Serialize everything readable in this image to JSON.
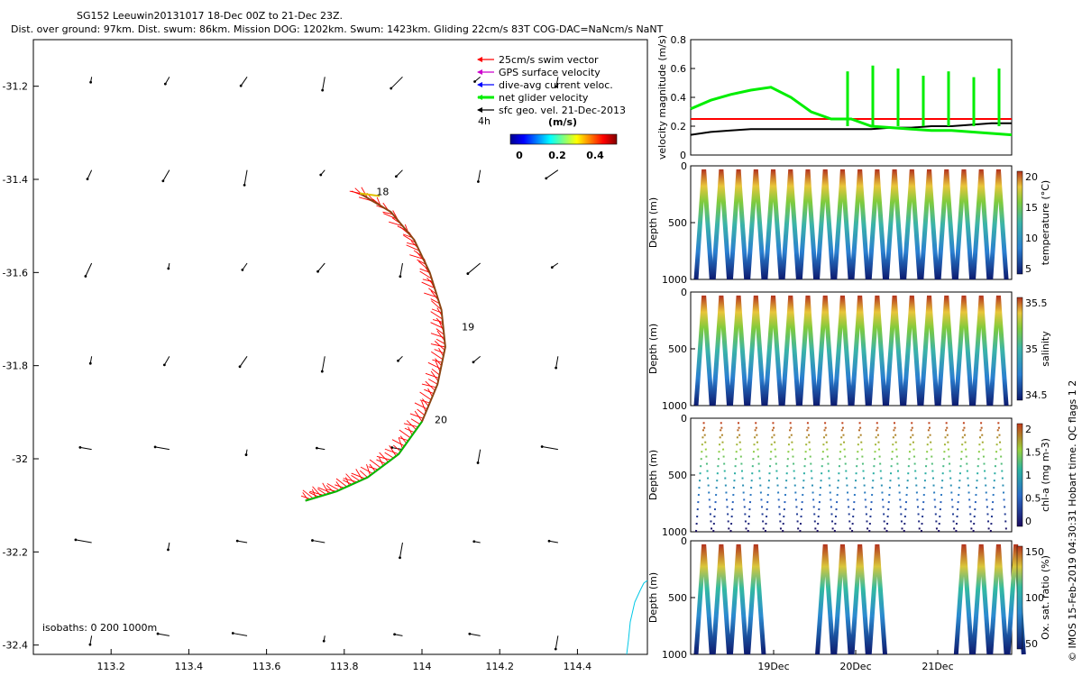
{
  "header": {
    "line1": "SG152 Leeuwin20131017 18-Dec 00Z to 21-Dec 23Z.",
    "line2": "Dist. over ground: 97km. Dist. swum: 86km. Mission DOG: 1202km. Swum: 1423km. Gliding 22cm/s 83T COG-DAC=NaNcm/s NaNT"
  },
  "colors": {
    "swim": "#ff0000",
    "gps": "#cc00cc",
    "dac": "#0000ff",
    "glider": "#00ee00",
    "sfc": "#000000",
    "isobath": "#00c8e6",
    "track": "#8b4513"
  },
  "chart_data": [
    {
      "type": "scatter",
      "title": "",
      "xlabel": "",
      "ylabel": "",
      "xlim": [
        113.0,
        114.58
      ],
      "ylim": [
        -32.42,
        -31.1
      ],
      "x_ticks": [
        "113.2",
        "113.4",
        "113.6",
        "113.8",
        "114",
        "114.2",
        "114.4"
      ],
      "y_ticks": [
        "-31.2",
        "-31.4",
        "-31.6",
        "-31.8",
        "-32",
        "-32.2",
        "-32.4"
      ],
      "legend": [
        {
          "label": "25cm/s swim vector",
          "color": "#ff0000"
        },
        {
          "label": "GPS surface velocity",
          "color": "#cc00cc"
        },
        {
          "label": "dive-avg current veloc.",
          "color": "#0000ff"
        },
        {
          "label": "net glider velocity",
          "color": "#00ee00"
        },
        {
          "label": "sfc geo. vel. 21-Dec-2013",
          "color": "#000000"
        }
      ],
      "vector_scale_label": "4h",
      "colorbar": {
        "title": "(m/s)",
        "ticks": [
          "0",
          "0.2",
          "0.4"
        ],
        "range": [
          0,
          0.5
        ]
      },
      "day_labels": [
        {
          "text": "18",
          "lon": 113.85,
          "lat": -31.43
        },
        {
          "text": "19",
          "lon": 114.07,
          "lat": -31.72
        },
        {
          "text": "20",
          "lon": 114.0,
          "lat": -31.92
        }
      ],
      "track": [
        {
          "lon": 113.84,
          "lat": -31.43
        },
        {
          "lon": 113.92,
          "lat": -31.47
        },
        {
          "lon": 113.98,
          "lat": -31.53
        },
        {
          "lon": 114.02,
          "lat": -31.6
        },
        {
          "lon": 114.05,
          "lat": -31.68
        },
        {
          "lon": 114.06,
          "lat": -31.76
        },
        {
          "lon": 114.04,
          "lat": -31.84
        },
        {
          "lon": 114.0,
          "lat": -31.92
        },
        {
          "lon": 113.94,
          "lat": -31.99
        },
        {
          "lon": 113.86,
          "lat": -32.04
        },
        {
          "lon": 113.78,
          "lat": -32.07
        },
        {
          "lon": 113.7,
          "lat": -32.09
        }
      ],
      "isobath_label": "isobaths: 0   200  1000m"
    },
    {
      "type": "line",
      "xlabel": "",
      "ylabel": "velocity magnitude (m/s)",
      "ylim": [
        0,
        0.8
      ],
      "y_ticks": [
        "0",
        "0.2",
        "0.4",
        "0.6",
        "0.8"
      ],
      "series": [
        {
          "color": "#ff0000",
          "values": [
            0.25,
            0.25,
            0.25,
            0.25,
            0.25,
            0.25,
            0.25,
            0.25,
            0.25,
            0.25,
            0.25,
            0.25,
            0.25,
            0.25,
            0.25,
            0.25,
            0.25
          ]
        },
        {
          "color": "#000000",
          "values": [
            0.14,
            0.16,
            0.17,
            0.18,
            0.18,
            0.18,
            0.18,
            0.18,
            0.18,
            0.18,
            0.19,
            0.19,
            0.2,
            0.2,
            0.21,
            0.22,
            0.22
          ]
        },
        {
          "color": "#00ee00",
          "values": [
            0.32,
            0.38,
            0.42,
            0.45,
            0.47,
            0.4,
            0.3,
            0.25,
            0.25,
            0.2,
            0.19,
            0.18,
            0.17,
            0.17,
            0.16,
            0.15,
            0.14
          ]
        }
      ]
    },
    {
      "type": "scatter",
      "xlabel": "",
      "ylabel": "Depth (m)",
      "ylim": [
        1000,
        0
      ],
      "y_ticks": [
        "0",
        "500",
        "1000"
      ],
      "colorbar": {
        "title": "temperature (°C)",
        "ticks": [
          "20",
          "15",
          "10",
          "5"
        ]
      },
      "profile": "temperature"
    },
    {
      "type": "scatter",
      "xlabel": "",
      "ylabel": "Depth (m)",
      "ylim": [
        1000,
        0
      ],
      "y_ticks": [
        "0",
        "500",
        "1000"
      ],
      "colorbar": {
        "title": "salinity",
        "ticks": [
          "35.5",
          "35",
          "34.5"
        ]
      },
      "profile": "salinity"
    },
    {
      "type": "scatter",
      "xlabel": "",
      "ylabel": "Depth (m)",
      "ylim": [
        1000,
        0
      ],
      "y_ticks": [
        "0",
        "500",
        "1000"
      ],
      "colorbar": {
        "title": "chl-a (mg m-3)",
        "ticks": [
          "2",
          "1.5",
          "1",
          "0.5",
          "0"
        ]
      },
      "profile": "chla"
    },
    {
      "type": "scatter",
      "xlabel": "",
      "ylabel": "Depth (m)",
      "ylim": [
        1000,
        0
      ],
      "y_ticks": [
        "0",
        "500",
        "1000"
      ],
      "x_ticks": [
        "19Dec",
        "20Dec",
        "21Dec"
      ],
      "colorbar": {
        "title": "Ox. sat. ratio (%)",
        "ticks": [
          "150",
          "100",
          "50"
        ]
      },
      "profile": "oxygen"
    }
  ],
  "side_note": "© IMOS 15-Feb-2019 04:30:31 Hobart time. QC flags 1  2"
}
